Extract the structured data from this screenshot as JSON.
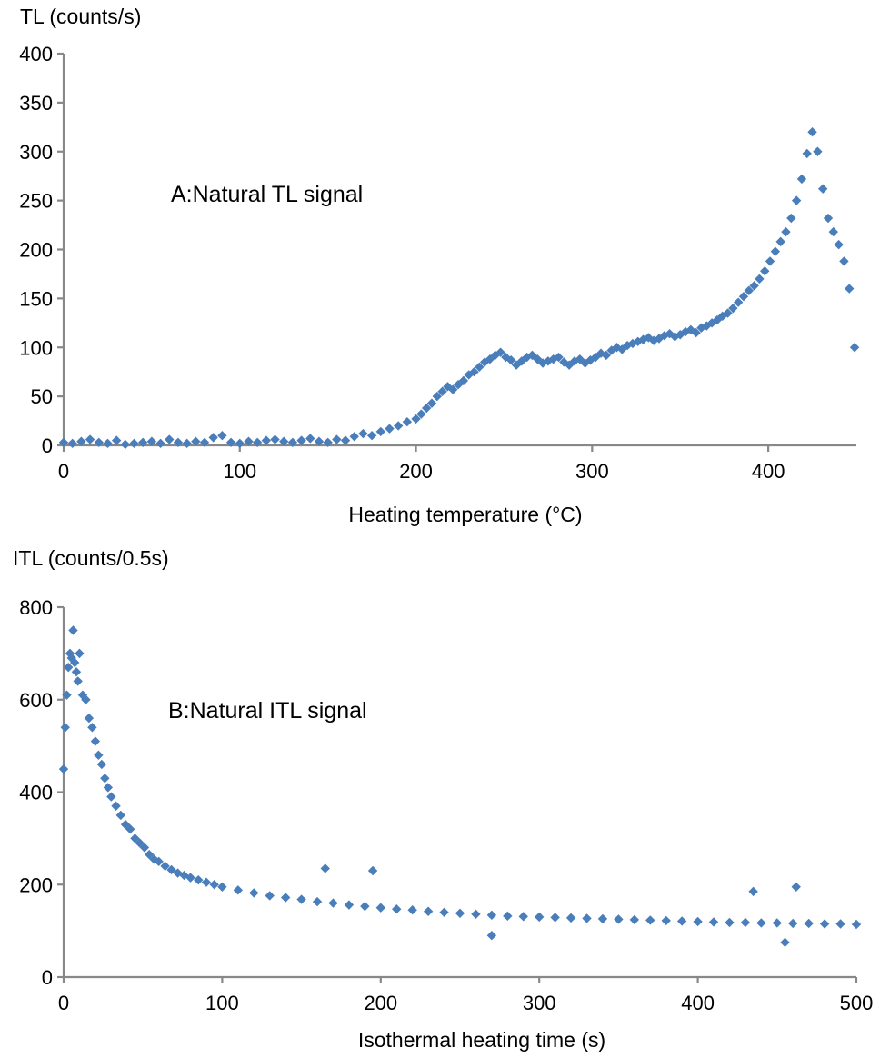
{
  "chart_data": [
    {
      "type": "scatter",
      "panel": "A",
      "title": "",
      "annotation": "A:Natural TL signal",
      "xlabel": "Heating temperature (°C)",
      "ylabel": "TL (counts/s)",
      "xlim": [
        0,
        450
      ],
      "ylim": [
        0,
        400
      ],
      "xticks": [
        0,
        100,
        200,
        300,
        400
      ],
      "yticks": [
        0,
        50,
        100,
        150,
        200,
        250,
        300,
        350,
        400
      ],
      "marker": "diamond",
      "color": "#4a7ebb",
      "points": [
        [
          0,
          3
        ],
        [
          5,
          2
        ],
        [
          10,
          4
        ],
        [
          15,
          6
        ],
        [
          20,
          3
        ],
        [
          25,
          2
        ],
        [
          30,
          5
        ],
        [
          35,
          1
        ],
        [
          40,
          2
        ],
        [
          45,
          3
        ],
        [
          50,
          4
        ],
        [
          55,
          2
        ],
        [
          60,
          6
        ],
        [
          65,
          3
        ],
        [
          70,
          2
        ],
        [
          75,
          4
        ],
        [
          80,
          3
        ],
        [
          85,
          8
        ],
        [
          90,
          10
        ],
        [
          95,
          3
        ],
        [
          100,
          2
        ],
        [
          105,
          4
        ],
        [
          110,
          3
        ],
        [
          115,
          5
        ],
        [
          120,
          6
        ],
        [
          125,
          4
        ],
        [
          130,
          3
        ],
        [
          135,
          5
        ],
        [
          140,
          7
        ],
        [
          145,
          4
        ],
        [
          150,
          3
        ],
        [
          155,
          6
        ],
        [
          160,
          5
        ],
        [
          165,
          9
        ],
        [
          170,
          12
        ],
        [
          175,
          10
        ],
        [
          180,
          14
        ],
        [
          185,
          17
        ],
        [
          190,
          20
        ],
        [
          195,
          24
        ],
        [
          200,
          27
        ],
        [
          203,
          32
        ],
        [
          206,
          38
        ],
        [
          209,
          43
        ],
        [
          212,
          50
        ],
        [
          215,
          55
        ],
        [
          218,
          60
        ],
        [
          221,
          57
        ],
        [
          224,
          62
        ],
        [
          227,
          66
        ],
        [
          230,
          72
        ],
        [
          233,
          75
        ],
        [
          236,
          80
        ],
        [
          239,
          85
        ],
        [
          242,
          88
        ],
        [
          245,
          92
        ],
        [
          248,
          95
        ],
        [
          251,
          90
        ],
        [
          254,
          87
        ],
        [
          257,
          82
        ],
        [
          260,
          86
        ],
        [
          263,
          90
        ],
        [
          266,
          92
        ],
        [
          269,
          88
        ],
        [
          272,
          84
        ],
        [
          275,
          86
        ],
        [
          278,
          88
        ],
        [
          281,
          90
        ],
        [
          284,
          85
        ],
        [
          287,
          82
        ],
        [
          290,
          86
        ],
        [
          293,
          88
        ],
        [
          296,
          84
        ],
        [
          299,
          87
        ],
        [
          302,
          90
        ],
        [
          305,
          94
        ],
        [
          308,
          92
        ],
        [
          311,
          97
        ],
        [
          314,
          100
        ],
        [
          317,
          98
        ],
        [
          320,
          102
        ],
        [
          323,
          104
        ],
        [
          326,
          106
        ],
        [
          329,
          108
        ],
        [
          332,
          110
        ],
        [
          335,
          107
        ],
        [
          338,
          109
        ],
        [
          341,
          112
        ],
        [
          344,
          114
        ],
        [
          347,
          111
        ],
        [
          350,
          113
        ],
        [
          353,
          116
        ],
        [
          356,
          118
        ],
        [
          359,
          115
        ],
        [
          362,
          120
        ],
        [
          365,
          122
        ],
        [
          368,
          125
        ],
        [
          371,
          128
        ],
        [
          374,
          132
        ],
        [
          377,
          135
        ],
        [
          380,
          140
        ],
        [
          383,
          146
        ],
        [
          386,
          152
        ],
        [
          389,
          158
        ],
        [
          392,
          163
        ],
        [
          395,
          170
        ],
        [
          398,
          178
        ],
        [
          401,
          188
        ],
        [
          404,
          198
        ],
        [
          407,
          208
        ],
        [
          410,
          218
        ],
        [
          413,
          232
        ],
        [
          416,
          250
        ],
        [
          419,
          272
        ],
        [
          422,
          298
        ],
        [
          425,
          320
        ],
        [
          428,
          300
        ],
        [
          431,
          262
        ],
        [
          434,
          232
        ],
        [
          437,
          218
        ],
        [
          440,
          205
        ],
        [
          443,
          188
        ],
        [
          446,
          160
        ],
        [
          449,
          100
        ]
      ]
    },
    {
      "type": "scatter",
      "panel": "B",
      "title": "",
      "annotation": "B:Natural ITL signal",
      "xlabel": "Isothermal heating time (s)",
      "ylabel": "ITL (counts/0.5s)",
      "xlim": [
        0,
        500
      ],
      "ylim": [
        0,
        800
      ],
      "xticks": [
        0,
        100,
        200,
        300,
        400,
        500
      ],
      "yticks": [
        0,
        200,
        400,
        600,
        800
      ],
      "marker": "diamond",
      "color": "#4a7ebb",
      "points": [
        [
          0,
          450
        ],
        [
          1,
          540
        ],
        [
          2,
          610
        ],
        [
          3,
          670
        ],
        [
          4,
          700
        ],
        [
          5,
          690
        ],
        [
          6,
          750
        ],
        [
          7,
          680
        ],
        [
          8,
          660
        ],
        [
          9,
          640
        ],
        [
          10,
          700
        ],
        [
          12,
          610
        ],
        [
          14,
          600
        ],
        [
          16,
          560
        ],
        [
          18,
          540
        ],
        [
          20,
          510
        ],
        [
          22,
          480
        ],
        [
          24,
          460
        ],
        [
          26,
          430
        ],
        [
          28,
          410
        ],
        [
          30,
          390
        ],
        [
          33,
          370
        ],
        [
          36,
          350
        ],
        [
          39,
          330
        ],
        [
          42,
          320
        ],
        [
          45,
          300
        ],
        [
          48,
          290
        ],
        [
          51,
          280
        ],
        [
          54,
          265
        ],
        [
          57,
          255
        ],
        [
          60,
          250
        ],
        [
          64,
          240
        ],
        [
          68,
          232
        ],
        [
          72,
          225
        ],
        [
          76,
          220
        ],
        [
          80,
          215
        ],
        [
          85,
          210
        ],
        [
          90,
          205
        ],
        [
          95,
          200
        ],
        [
          100,
          195
        ],
        [
          110,
          188
        ],
        [
          120,
          182
        ],
        [
          130,
          176
        ],
        [
          140,
          172
        ],
        [
          150,
          168
        ],
        [
          160,
          163
        ],
        [
          170,
          160
        ],
        [
          180,
          156
        ],
        [
          190,
          153
        ],
        [
          200,
          150
        ],
        [
          210,
          147
        ],
        [
          220,
          145
        ],
        [
          230,
          142
        ],
        [
          240,
          140
        ],
        [
          250,
          138
        ],
        [
          260,
          136
        ],
        [
          270,
          134
        ],
        [
          280,
          132
        ],
        [
          290,
          131
        ],
        [
          300,
          130
        ],
        [
          310,
          129
        ],
        [
          320,
          128
        ],
        [
          330,
          127
        ],
        [
          340,
          126
        ],
        [
          350,
          125
        ],
        [
          360,
          124
        ],
        [
          370,
          123
        ],
        [
          380,
          122
        ],
        [
          390,
          121
        ],
        [
          400,
          120
        ],
        [
          410,
          119
        ],
        [
          420,
          118
        ],
        [
          430,
          118
        ],
        [
          440,
          117
        ],
        [
          450,
          117
        ],
        [
          460,
          116
        ],
        [
          470,
          116
        ],
        [
          480,
          115
        ],
        [
          490,
          115
        ],
        [
          500,
          114
        ],
        [
          165,
          235
        ],
        [
          195,
          230
        ],
        [
          435,
          185
        ],
        [
          462,
          195
        ],
        [
          270,
          90
        ],
        [
          455,
          75
        ]
      ]
    }
  ]
}
